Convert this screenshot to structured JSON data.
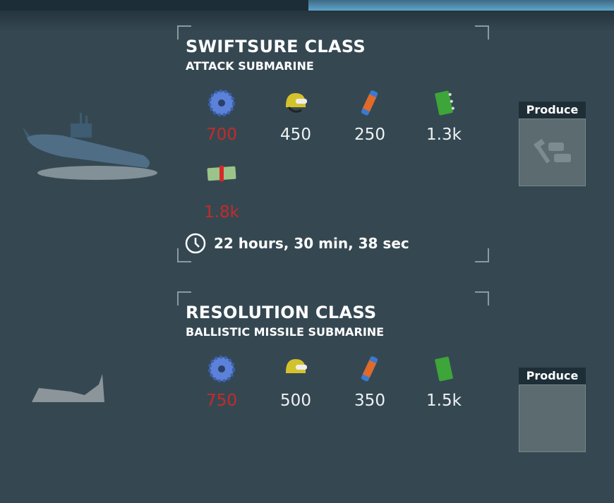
{
  "units": [
    {
      "name": "SWIFTSURE CLASS",
      "type": "ATTACK SUBMARINE",
      "resources": [
        {
          "icon": "gear-icon",
          "value": "700",
          "insufficient": true
        },
        {
          "icon": "helmet-icon",
          "value": "450",
          "insufficient": false
        },
        {
          "icon": "battery-icon",
          "value": "250",
          "insufficient": false
        },
        {
          "icon": "circuit-board-icon",
          "value": "1.3k",
          "insufficient": false
        },
        {
          "icon": "cash-icon",
          "value": "1.8k",
          "insufficient": true
        }
      ],
      "time": "22 hours, 30 min, 38 sec",
      "produce_label": "Produce"
    },
    {
      "name": "RESOLUTION CLASS",
      "type": "BALLISTIC MISSILE SUBMARINE",
      "resources": [
        {
          "icon": "gear-icon",
          "value": "750",
          "insufficient": true
        },
        {
          "icon": "helmet-icon",
          "value": "500",
          "insufficient": false
        },
        {
          "icon": "battery-icon",
          "value": "350",
          "insufficient": false
        },
        {
          "icon": "circuit-board-icon",
          "value": "1.5k",
          "insufficient": false
        }
      ],
      "produce_label": "Produce"
    }
  ],
  "colors": {
    "insufficient": "#c52a2a",
    "background": "#354852",
    "tab_active": "#5ea5cc"
  }
}
